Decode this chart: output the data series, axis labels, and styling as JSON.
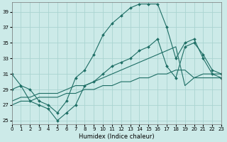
{
  "xlabel": "Humidex (Indice chaleur)",
  "bg_color": "#cceae8",
  "grid_color": "#aad4d1",
  "line_color": "#1e6e65",
  "x_ticks": [
    0,
    1,
    2,
    3,
    4,
    5,
    6,
    7,
    8,
    9,
    10,
    11,
    12,
    13,
    14,
    15,
    16,
    17,
    18,
    19,
    20,
    21,
    22,
    23
  ],
  "y_ticks": [
    25,
    27,
    29,
    31,
    33,
    35,
    37,
    39
  ],
  "xlim": [
    0,
    23
  ],
  "ylim": [
    24.5,
    40.2
  ],
  "series1_x": [
    0,
    1,
    2,
    3,
    4,
    5,
    6,
    7,
    8,
    9,
    10,
    11,
    12,
    13,
    14,
    15,
    16,
    17,
    18,
    19,
    20,
    21,
    22,
    23
  ],
  "series1_y": [
    31.0,
    29.5,
    29.0,
    27.5,
    27.0,
    26.0,
    27.5,
    30.5,
    31.5,
    33.5,
    36.0,
    37.5,
    38.5,
    39.5,
    40.0,
    40.0,
    40.0,
    37.0,
    33.0,
    35.0,
    35.5,
    33.0,
    31.0,
    30.5
  ],
  "series2_x": [
    0,
    1,
    2,
    3,
    4,
    5,
    6,
    7,
    8,
    9,
    10,
    11,
    12,
    13,
    14,
    15,
    16,
    17,
    18,
    19,
    20,
    21,
    22,
    23
  ],
  "series2_y": [
    29.0,
    29.5,
    27.5,
    27.0,
    26.5,
    25.0,
    26.0,
    27.0,
    29.5,
    30.0,
    31.0,
    32.0,
    32.5,
    33.0,
    34.0,
    34.5,
    35.5,
    32.0,
    30.5,
    34.5,
    35.0,
    33.5,
    31.5,
    31.0
  ],
  "series3_x": [
    0,
    1,
    2,
    3,
    4,
    5,
    6,
    7,
    8,
    9,
    10,
    11,
    12,
    13,
    14,
    15,
    16,
    17,
    18,
    19,
    20,
    21,
    22,
    23
  ],
  "series3_y": [
    27.5,
    28.0,
    28.0,
    28.5,
    28.5,
    28.5,
    29.0,
    29.5,
    29.5,
    30.0,
    30.5,
    31.0,
    31.5,
    32.0,
    32.5,
    33.0,
    33.5,
    34.0,
    34.5,
    29.5,
    30.5,
    31.0,
    31.0,
    31.0
  ],
  "series4_x": [
    0,
    1,
    2,
    3,
    4,
    5,
    6,
    7,
    8,
    9,
    10,
    11,
    12,
    13,
    14,
    15,
    16,
    17,
    18,
    19,
    20,
    21,
    22,
    23
  ],
  "series4_y": [
    27.0,
    27.5,
    27.5,
    28.0,
    28.0,
    28.0,
    28.5,
    28.5,
    29.0,
    29.0,
    29.5,
    29.5,
    30.0,
    30.0,
    30.5,
    30.5,
    31.0,
    31.0,
    31.5,
    31.5,
    30.5,
    30.5,
    30.5,
    30.5
  ]
}
